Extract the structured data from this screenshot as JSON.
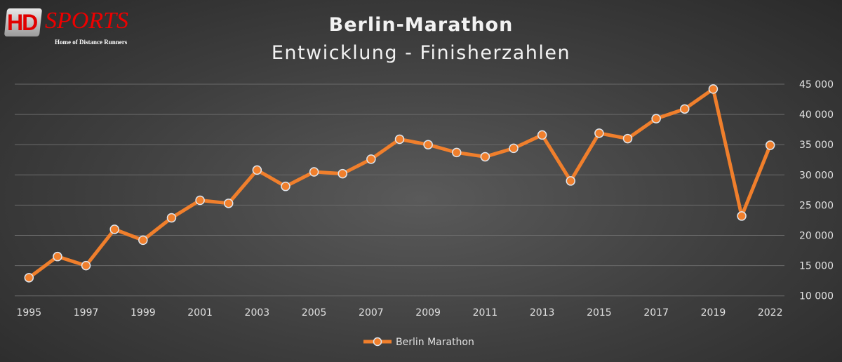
{
  "logo": {
    "brand": "HD SPORTS",
    "tagline": "Home of Distance Runners"
  },
  "chart_data": {
    "type": "line",
    "title": "Berlin-Marathon",
    "subtitle": "Entwicklung - Finisherzahlen",
    "categories": [
      "1995",
      "1996",
      "1997",
      "1998",
      "1999",
      "2000",
      "2001",
      "2002",
      "2003",
      "2004",
      "2005",
      "2006",
      "2007",
      "2008",
      "2009",
      "2010",
      "2011",
      "2012",
      "2013",
      "2014",
      "2015",
      "2016",
      "2017",
      "2018",
      "2019",
      "2020",
      "2022"
    ],
    "x_tick_labels": [
      "1995",
      "1997",
      "1999",
      "2001",
      "2003",
      "2005",
      "2007",
      "2009",
      "2011",
      "2013",
      "2015",
      "2017",
      "2019",
      "2022"
    ],
    "series": [
      {
        "name": "Berlin Marathon",
        "color": "#f07f2c",
        "values": [
          13000,
          16500,
          15000,
          21000,
          19200,
          22900,
          25800,
          25300,
          30800,
          28100,
          30500,
          30200,
          32600,
          35900,
          35000,
          33700,
          33000,
          34400,
          36600,
          29000,
          36900,
          36000,
          39300,
          40900,
          44200,
          23200,
          34900
        ]
      }
    ],
    "ylim": [
      10000,
      45000
    ],
    "y_ticks": [
      "10 000",
      "15 000",
      "20 000",
      "25 000",
      "30 000",
      "35 000",
      "40 000",
      "45 000"
    ],
    "y_axis_position": "right",
    "grid": true,
    "legend": "bottom"
  }
}
